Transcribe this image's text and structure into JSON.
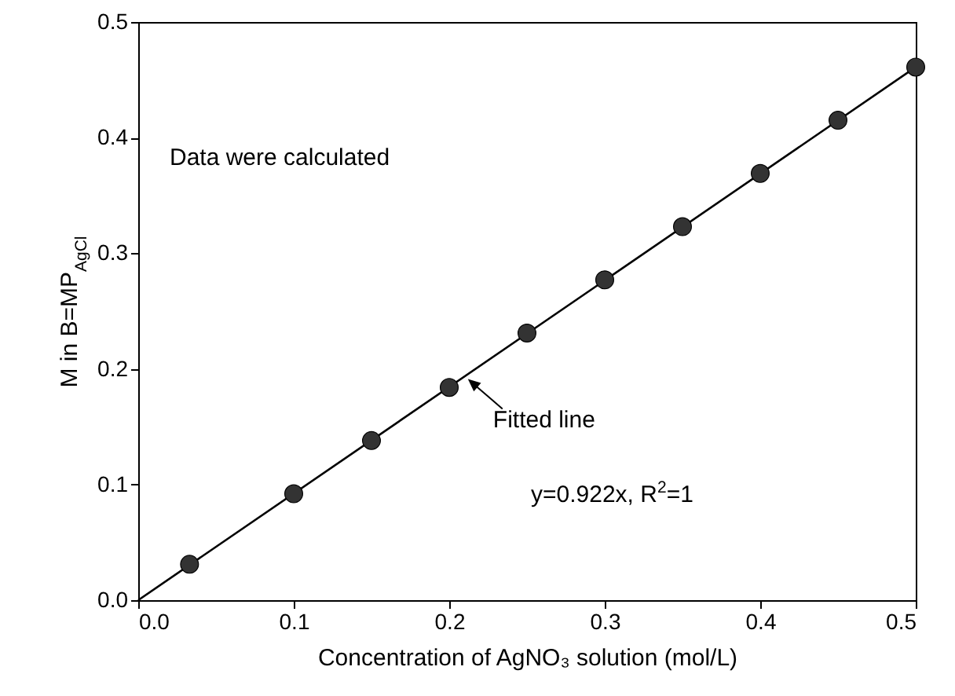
{
  "chart_data": {
    "type": "scatter",
    "xlabel": "Concentration of AgNO₃ solution (mol/L)",
    "ylabel": "M in B=MP$_{AgCl}$",
    "annotations": [
      "Data were calculated",
      {
        "text": "Fitted line",
        "x": 0.21,
        "y": 0.194
      },
      "y=0.922x, R$^{2}$=1"
    ],
    "series": [
      {
        "type": "line",
        "x": [
          0,
          0.5
        ],
        "values": [
          0,
          0.461
        ],
        "color": "#000000",
        "marker": "none"
      },
      {
        "type": "scatter",
        "x": [
          0.033,
          0.1,
          0.15,
          0.2,
          0.25,
          0.3,
          0.35,
          0.4,
          0.45,
          0.5
        ],
        "values": [
          0.031,
          0.092,
          0.138,
          0.184,
          0.231,
          0.277,
          0.323,
          0.369,
          0.415,
          0.461
        ],
        "color": "#333333",
        "marker": "circle"
      }
    ],
    "xlim": [
      0,
      0.5
    ],
    "ylim": [
      0,
      0.5
    ],
    "xticks": [
      {
        "value": 0,
        "label": "0.0"
      },
      0.1,
      0.2,
      0.3,
      0.4,
      0.5
    ],
    "yticks": [
      {
        "value": 0,
        "label": "0.0"
      },
      0.1,
      0.2,
      0.3,
      0.4,
      0.5
    ],
    "grid": false
  }
}
